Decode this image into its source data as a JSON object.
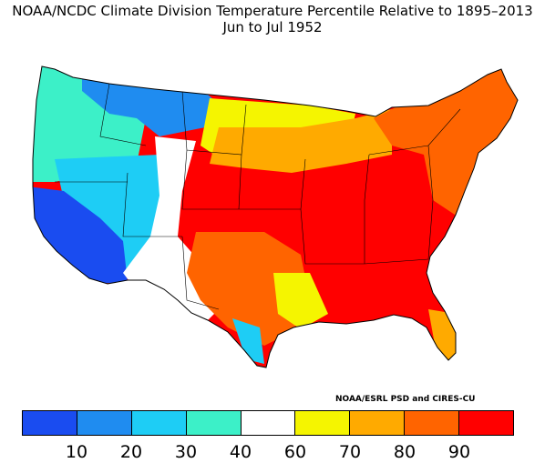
{
  "title": {
    "line1": "NOAA/NCDC Climate Division Temperature Percentile Relative to 1895–2013",
    "line2": "Jun to Jul 1952"
  },
  "credit": "NOAA/ESRL PSD and CIRES-CU",
  "colorbar": {
    "colors": [
      "#1a4cf0",
      "#1f8cf0",
      "#1ecdf5",
      "#3cf0c8",
      "#ffffff",
      "#f5f500",
      "#ffaa00",
      "#ff6400",
      "#ff0000"
    ],
    "tick_labels": [
      "10",
      "20",
      "30",
      "40",
      "60",
      "70",
      "80",
      "90"
    ]
  },
  "map": {
    "regions": [
      {
        "name": "pacific-northwest",
        "color": "#3cf0c8"
      },
      {
        "name": "northern-rockies",
        "color": "#1f8cf0"
      },
      {
        "name": "great-basin",
        "color": "#1ecdf5"
      },
      {
        "name": "california-southwest",
        "color": "#1a4cf0"
      },
      {
        "name": "southwest-new-mexico",
        "color": "#ffffff"
      },
      {
        "name": "north-dakota-region",
        "color": "#f5f500"
      },
      {
        "name": "upper-midwest",
        "color": "#ffaa00"
      },
      {
        "name": "central-east",
        "color": "#ff0000"
      },
      {
        "name": "northeast",
        "color": "#ff6400"
      },
      {
        "name": "texas",
        "color": "#ff6400"
      },
      {
        "name": "gulf-coast",
        "color": "#f5f500"
      },
      {
        "name": "florida",
        "color": "#ffaa00"
      }
    ]
  }
}
